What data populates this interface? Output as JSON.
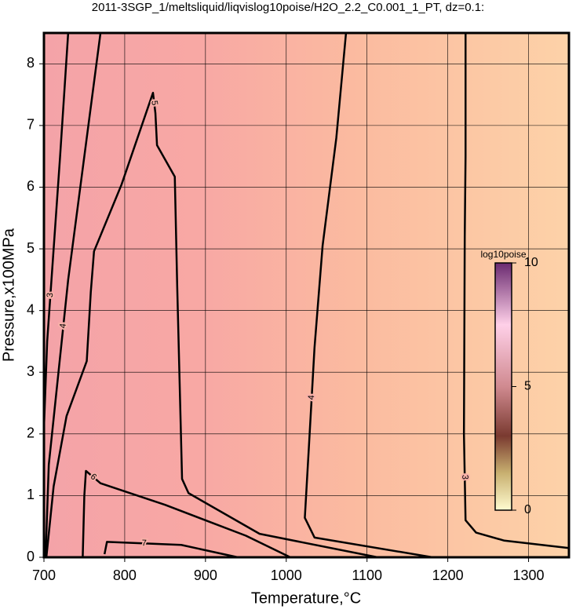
{
  "chart_data": {
    "type": "contour",
    "title": "2011-3SGP_1/meltsliquid/liqvislog10poise/H2O_2.2_C0.001_1_PT, dz=0.1:",
    "x_label": "Temperature,°C",
    "y_label": "Pressure,x100MPa",
    "xlim": [
      700,
      1350
    ],
    "ylim": [
      0,
      8.5
    ],
    "xticks": [
      700,
      800,
      900,
      1000,
      1100,
      1200,
      1300
    ],
    "yticks": [
      0,
      1,
      2,
      3,
      4,
      5,
      6,
      7,
      8
    ],
    "grid": true,
    "line_color": "#000000",
    "contours": [
      {
        "level": 3,
        "x": [
          1222,
          1222,
          1221,
          1220,
          1222,
          1235,
          1270,
          1350
        ],
        "y": [
          8.5,
          6.5,
          5.2,
          2.0,
          0.6,
          0.4,
          0.27,
          0.15
        ]
      },
      {
        "level": 4,
        "x": [
          1074,
          1062,
          1045,
          1035,
          1028,
          1023,
          1035,
          1181
        ],
        "y": [
          8.5,
          6.8,
          5.05,
          3.4,
          1.78,
          0.64,
          0.32,
          0
        ]
      },
      {
        "level": 5,
        "x": [
          703,
          712,
          728,
          753,
          758,
          762,
          796,
          835,
          838,
          840,
          862,
          865,
          871,
          879,
          967,
          1113
        ],
        "y": [
          0,
          1.15,
          2.29,
          3.18,
          4.3,
          4.96,
          6.04,
          7.53,
          7.2,
          6.68,
          6.17,
          4.39,
          1.27,
          1.04,
          0.38,
          0
        ]
      },
      {
        "level": 6,
        "x": [
          748,
          750,
          752,
          770,
          850,
          950,
          1005
        ],
        "y": [
          0,
          1.0,
          1.4,
          1.2,
          0.85,
          0.35,
          0
        ]
      },
      {
        "level": 7,
        "x": [
          775,
          778,
          870,
          940
        ],
        "y": [
          0.05,
          0.25,
          0.2,
          0
        ]
      },
      {
        "level": 4,
        "x": [
          702,
          706,
          718,
          730,
          745,
          760,
          770
        ],
        "y": [
          0,
          1.5,
          3.0,
          4.5,
          6.0,
          7.5,
          8.5
        ]
      },
      {
        "level": 3,
        "x": [
          700,
          704,
          712,
          720,
          730
        ],
        "y": [
          2.1,
          3.5,
          5.0,
          6.5,
          8.5
        ]
      }
    ],
    "colorbar": {
      "label": "log10poise",
      "lim": [
        0,
        10
      ],
      "ticks": [
        0,
        5,
        10
      ]
    }
  }
}
